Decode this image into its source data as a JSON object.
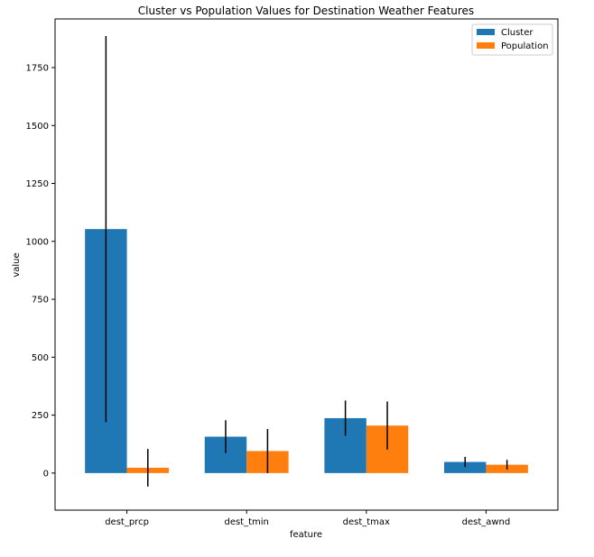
{
  "chart_data": {
    "type": "bar",
    "title": "Cluster vs Population Values for Destination Weather Features",
    "xlabel": "feature",
    "ylabel": "value",
    "categories": [
      "dest_prcp",
      "dest_tmin",
      "dest_tmax",
      "dest_awnd"
    ],
    "ylim": [
      -160,
      1960
    ],
    "yticks": [
      0,
      250,
      500,
      750,
      1000,
      1250,
      1500,
      1750
    ],
    "grid": false,
    "legend_position": "top-right",
    "series": [
      {
        "name": "Cluster",
        "color": "#1f77b4",
        "values": [
          1053,
          157,
          237,
          48
        ],
        "errors": [
          833,
          71,
          76,
          22
        ]
      },
      {
        "name": "Population",
        "color": "#ff7f0e",
        "values": [
          23,
          95,
          205,
          36
        ],
        "errors": [
          81,
          95,
          104,
          21
        ]
      }
    ]
  }
}
